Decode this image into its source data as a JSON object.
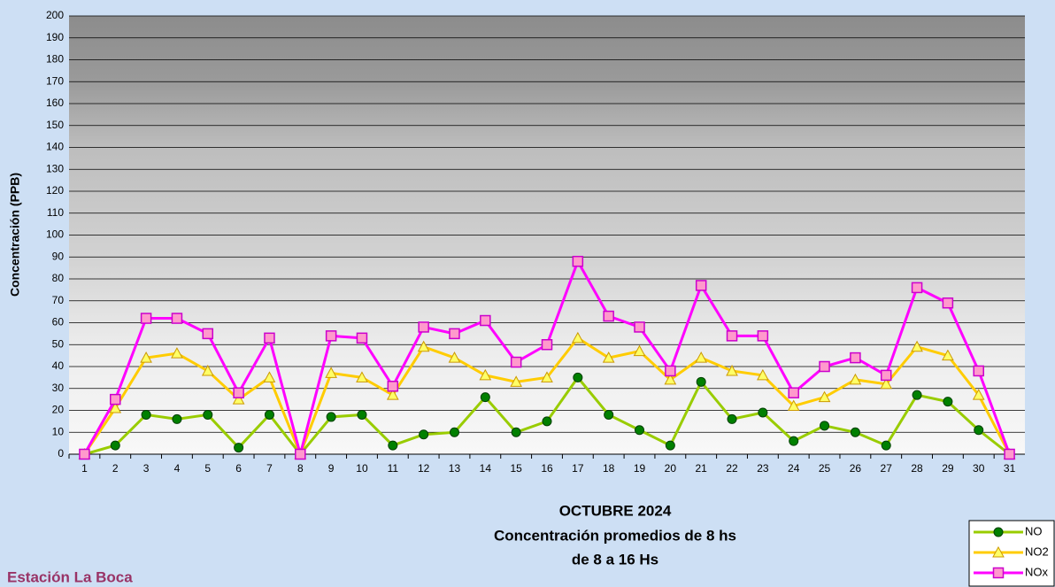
{
  "chart_data": {
    "type": "line",
    "title": [
      "OCTUBRE 2024",
      "Concentración promedios de 8 hs",
      "de 8 a 16 Hs"
    ],
    "station": "Estación La Boca",
    "y_label": "Concentración (PPB)",
    "categories": [
      "1",
      "2",
      "3",
      "4",
      "5",
      "6",
      "7",
      "8",
      "9",
      "10",
      "11",
      "12",
      "13",
      "14",
      "15",
      "16",
      "17",
      "18",
      "19",
      "20",
      "21",
      "22",
      "23",
      "24",
      "25",
      "26",
      "27",
      "28",
      "29",
      "30",
      "31"
    ],
    "series": [
      {
        "name": "NO",
        "color": "#99cc00",
        "marker": "circle",
        "marker_color": "#008000",
        "values": [
          0,
          4,
          18,
          16,
          18,
          3,
          18,
          0,
          17,
          18,
          4,
          9,
          10,
          26,
          10,
          15,
          35,
          18,
          11,
          4,
          33,
          16,
          19,
          6,
          13,
          10,
          4,
          27,
          24,
          11,
          0
        ]
      },
      {
        "name": "NO2",
        "color": "#ffcc00",
        "marker": "triangle",
        "marker_color": "#ffff66",
        "values": [
          0,
          21,
          44,
          46,
          38,
          25,
          35,
          0,
          37,
          35,
          27,
          49,
          44,
          36,
          33,
          35,
          53,
          44,
          47,
          34,
          44,
          38,
          36,
          22,
          26,
          34,
          32,
          49,
          45,
          27,
          0
        ]
      },
      {
        "name": "NOx",
        "color": "#ff00ff",
        "marker": "square",
        "marker_color": "#ff99cc",
        "values": [
          0,
          25,
          62,
          62,
          55,
          28,
          53,
          0,
          54,
          53,
          31,
          58,
          55,
          61,
          42,
          50,
          88,
          63,
          58,
          38,
          77,
          54,
          54,
          28,
          40,
          44,
          36,
          76,
          69,
          38,
          0
        ]
      }
    ],
    "ylim": [
      0,
      200
    ],
    "yticks": [
      0,
      10,
      20,
      30,
      40,
      50,
      60,
      70,
      80,
      90,
      100,
      110,
      120,
      130,
      140,
      150,
      160,
      170,
      180,
      190,
      200
    ],
    "grid": true,
    "legend": "bottom-right"
  }
}
